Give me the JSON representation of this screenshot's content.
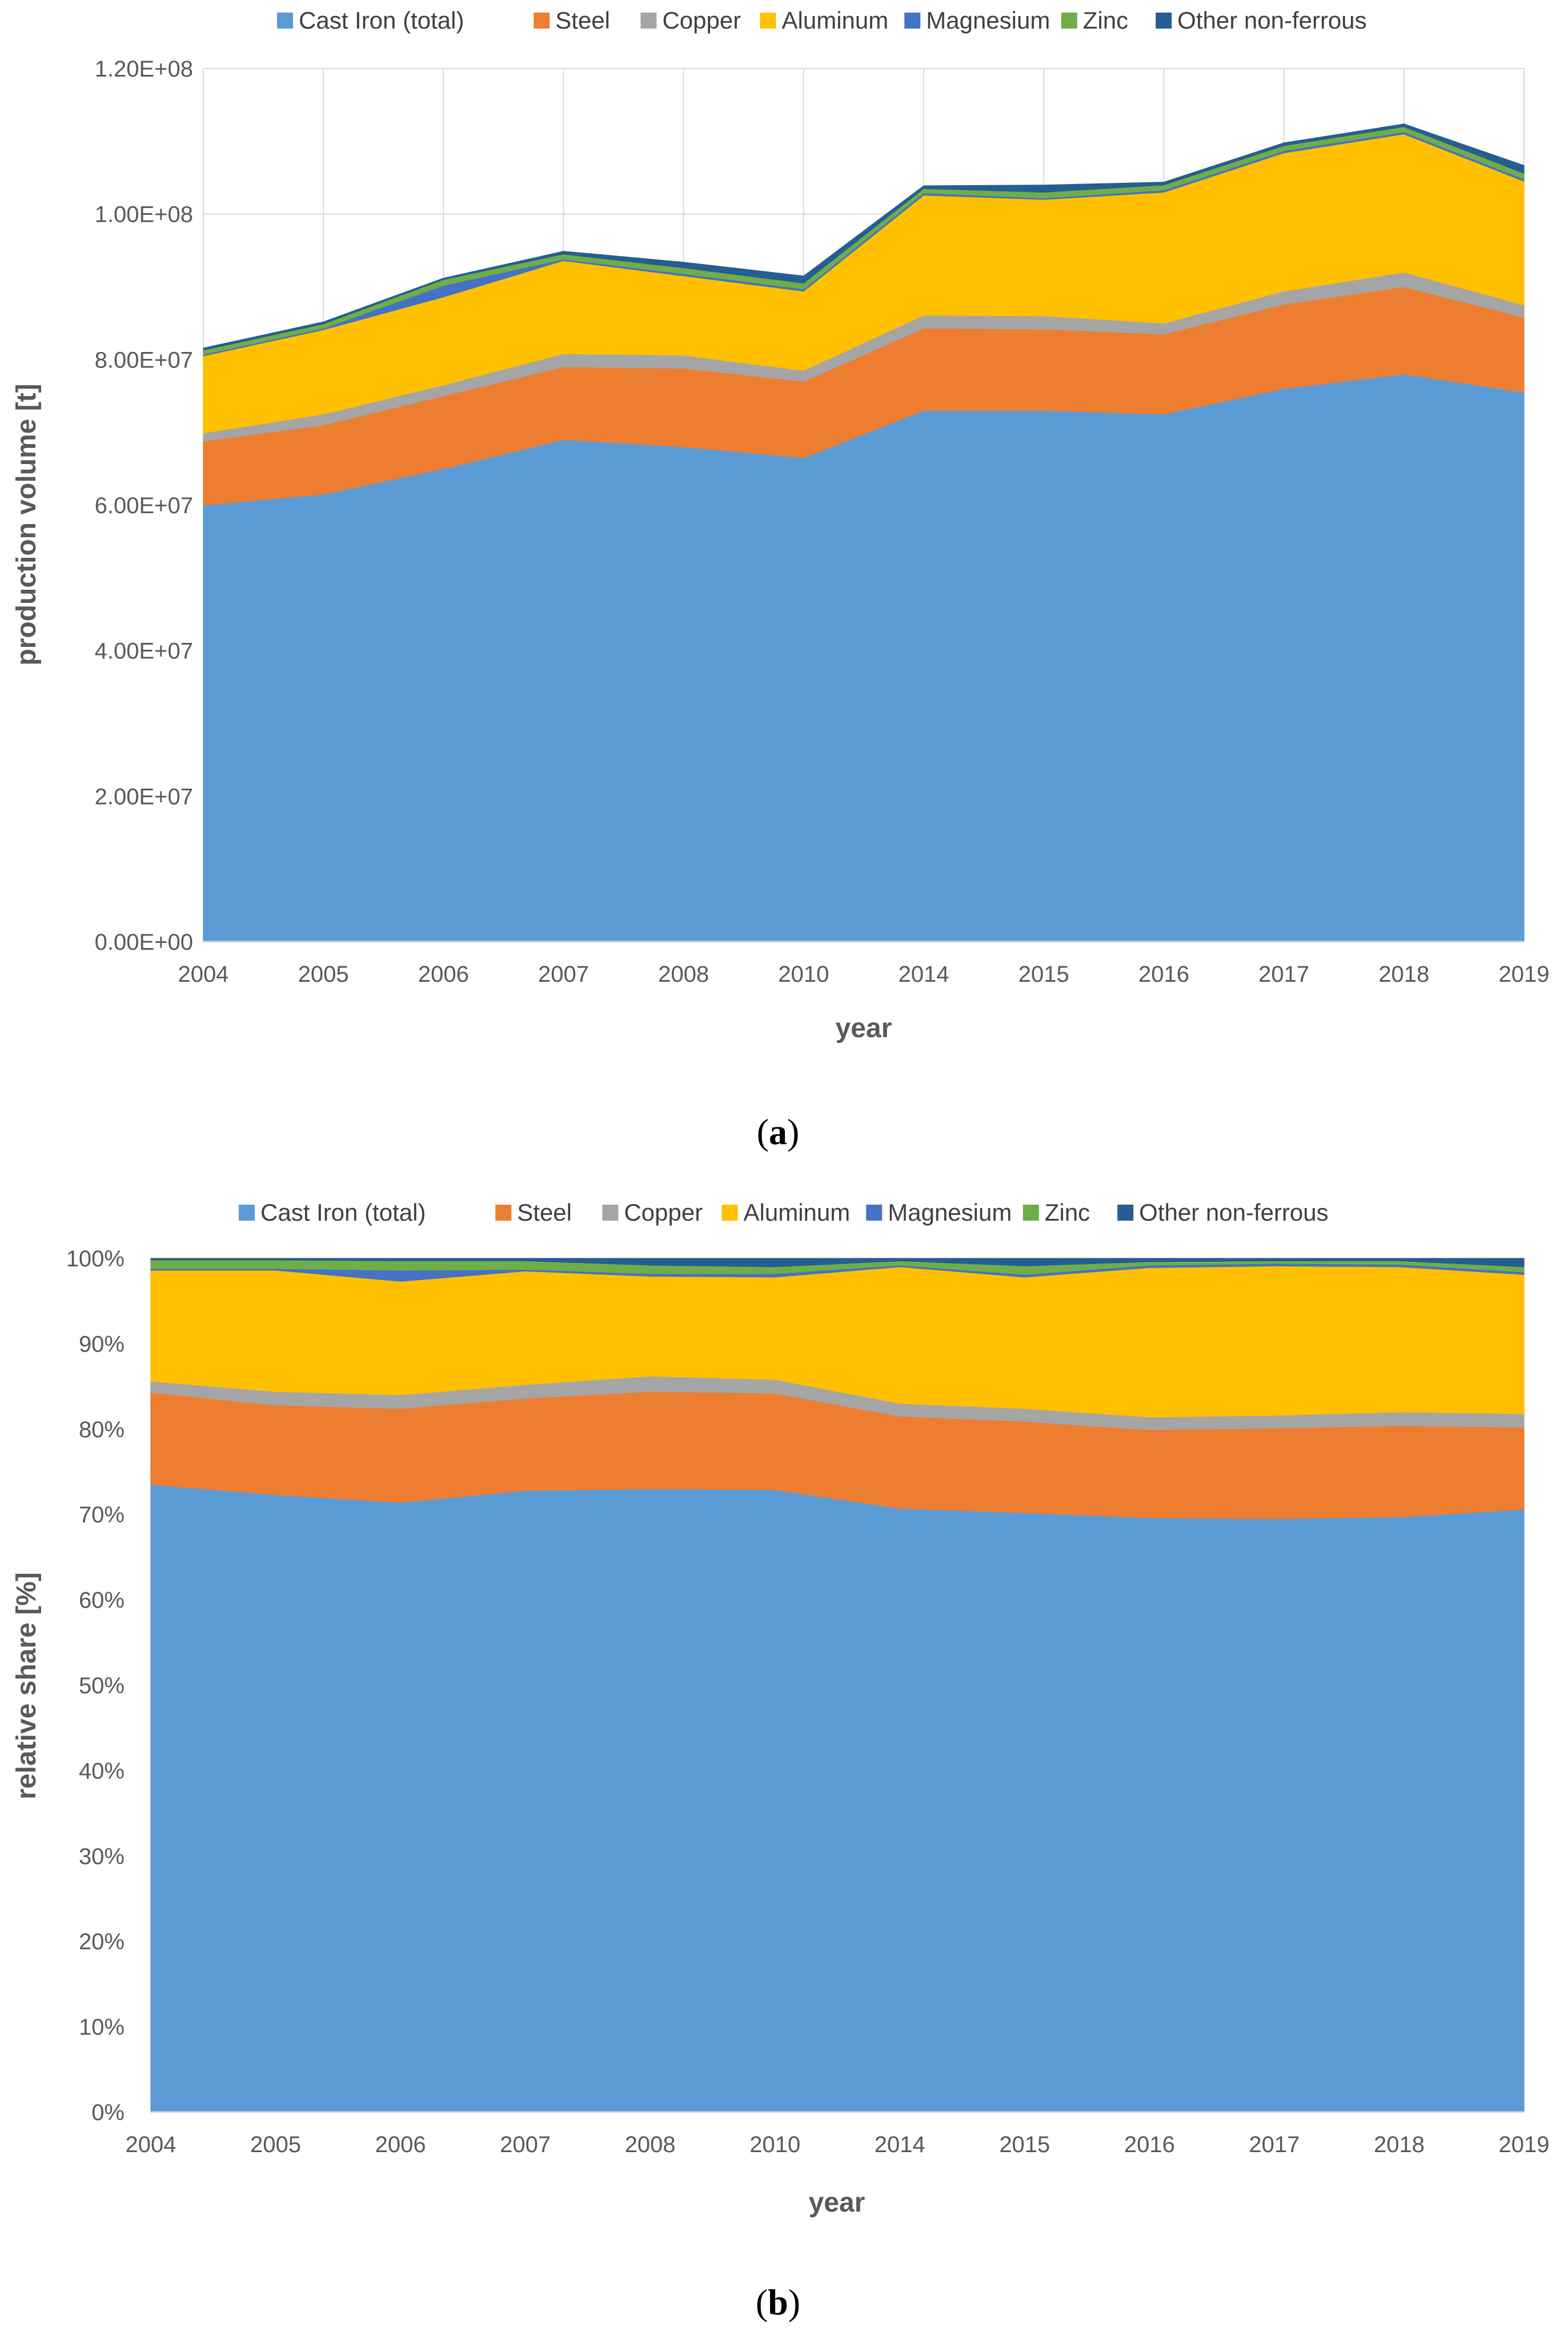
{
  "series_names": [
    "Cast Iron (total)",
    "Steel",
    "Copper",
    "Aluminum",
    "Magnesium",
    "Zinc",
    "Other non-ferrous"
  ],
  "series_colors": [
    "#5B9BD5",
    "#ED7D31",
    "#A5A5A5",
    "#FFC000",
    "#4472C4",
    "#70AD47",
    "#255E91"
  ],
  "captions": {
    "a_open": "(",
    "a_letter": "a",
    "a_close": ")",
    "b_open": "(",
    "b_letter": "b",
    "b_close": ")"
  },
  "chart_data": [
    {
      "id": "a",
      "type": "area",
      "stacked": true,
      "title": "",
      "categories": [
        "2004",
        "2005",
        "2006",
        "2007",
        "2008",
        "2010",
        "2014",
        "2015",
        "2016",
        "2017",
        "2018",
        "2019"
      ],
      "xlabel": "year",
      "ylabel": "production volume [t]",
      "ylim": [
        0,
        120000000
      ],
      "yticks": [
        0,
        20000000,
        40000000,
        60000000,
        80000000,
        100000000,
        120000000
      ],
      "ytick_labels": [
        "0.00E+00",
        "2.00E+07",
        "4.00E+07",
        "6.00E+07",
        "8.00E+07",
        "1.00E+08",
        "1.20E+08"
      ],
      "legend": "top",
      "grid": true,
      "series": [
        {
          "name": "Cast Iron (total)",
          "values": [
            60000000,
            61500000,
            65000000,
            69000000,
            68000000,
            66500000,
            73000000,
            73000000,
            72500000,
            76000000,
            78000000,
            75500000
          ]
        },
        {
          "name": "Steel",
          "values": [
            8800000,
            9500000,
            10000000,
            10000000,
            10800000,
            10500000,
            11300000,
            11200000,
            11000000,
            11600000,
            12000000,
            10300000
          ]
        },
        {
          "name": "Copper",
          "values": [
            1100000,
            1500000,
            1500000,
            1800000,
            1800000,
            1500000,
            1800000,
            1800000,
            1500000,
            1800000,
            2000000,
            1700000
          ]
        },
        {
          "name": "Aluminum",
          "values": [
            10600000,
            11600000,
            12100000,
            12800000,
            10900000,
            10900000,
            16500000,
            16000000,
            18000000,
            19000000,
            19000000,
            17000000
          ]
        },
        {
          "name": "Magnesium",
          "values": [
            200000,
            200000,
            1600000,
            200000,
            300000,
            300000,
            300000,
            200000,
            300000,
            300000,
            300000,
            300000
          ]
        },
        {
          "name": "Zinc",
          "values": [
            600000,
            600000,
            800000,
            700000,
            800000,
            800000,
            600000,
            800000,
            700000,
            700000,
            700000,
            800000
          ]
        },
        {
          "name": "Other non-ferrous",
          "values": [
            300000,
            300000,
            200000,
            400000,
            800000,
            1000000,
            400000,
            1000000,
            400000,
            400000,
            400000,
            1100000
          ]
        }
      ]
    },
    {
      "id": "b",
      "type": "area",
      "stacked": true,
      "title": "",
      "categories": [
        "2004",
        "2005",
        "2006",
        "2007",
        "2008",
        "2010",
        "2014",
        "2015",
        "2016",
        "2017",
        "2018",
        "2019"
      ],
      "xlabel": "year",
      "ylabel": "relative share [%]",
      "ylim": [
        0,
        100
      ],
      "yticks": [
        0,
        10,
        20,
        30,
        40,
        50,
        60,
        70,
        80,
        90,
        100
      ],
      "ytick_labels": [
        "0%",
        "10%",
        "20%",
        "30%",
        "40%",
        "50%",
        "60%",
        "70%",
        "80%",
        "90%",
        "100%"
      ],
      "legend": "top",
      "grid": true,
      "series": [
        {
          "name": "Cast Iron (total)",
          "values": [
            73.5,
            72.3,
            71.4,
            72.8,
            73.0,
            72.9,
            70.7,
            70.2,
            69.6,
            69.5,
            69.7,
            70.6
          ]
        },
        {
          "name": "Steel",
          "values": [
            10.8,
            10.5,
            11.0,
            10.8,
            11.4,
            11.3,
            10.8,
            10.7,
            10.3,
            10.6,
            10.7,
            9.6
          ]
        },
        {
          "name": "Copper",
          "values": [
            1.3,
            1.6,
            1.6,
            1.6,
            1.8,
            1.6,
            1.5,
            1.5,
            1.5,
            1.5,
            1.6,
            1.6
          ]
        },
        {
          "name": "Aluminum",
          "values": [
            13.0,
            14.2,
            13.3,
            13.3,
            11.7,
            12.0,
            16.0,
            15.4,
            17.5,
            17.5,
            17.0,
            16.3
          ]
        },
        {
          "name": "Magnesium",
          "values": [
            0.2,
            0.2,
            1.3,
            0.2,
            0.3,
            0.4,
            0.2,
            0.3,
            0.3,
            0.3,
            0.3,
            0.3
          ]
        },
        {
          "name": "Zinc",
          "values": [
            1.0,
            1.0,
            1.1,
            1.0,
            1.0,
            0.8,
            0.5,
            1.0,
            0.4,
            0.3,
            0.4,
            0.6
          ]
        },
        {
          "name": "Other non-ferrous",
          "values": [
            0.2,
            0.2,
            0.3,
            0.3,
            0.8,
            1.0,
            0.3,
            0.9,
            0.4,
            0.3,
            0.3,
            1.0
          ]
        }
      ]
    }
  ]
}
